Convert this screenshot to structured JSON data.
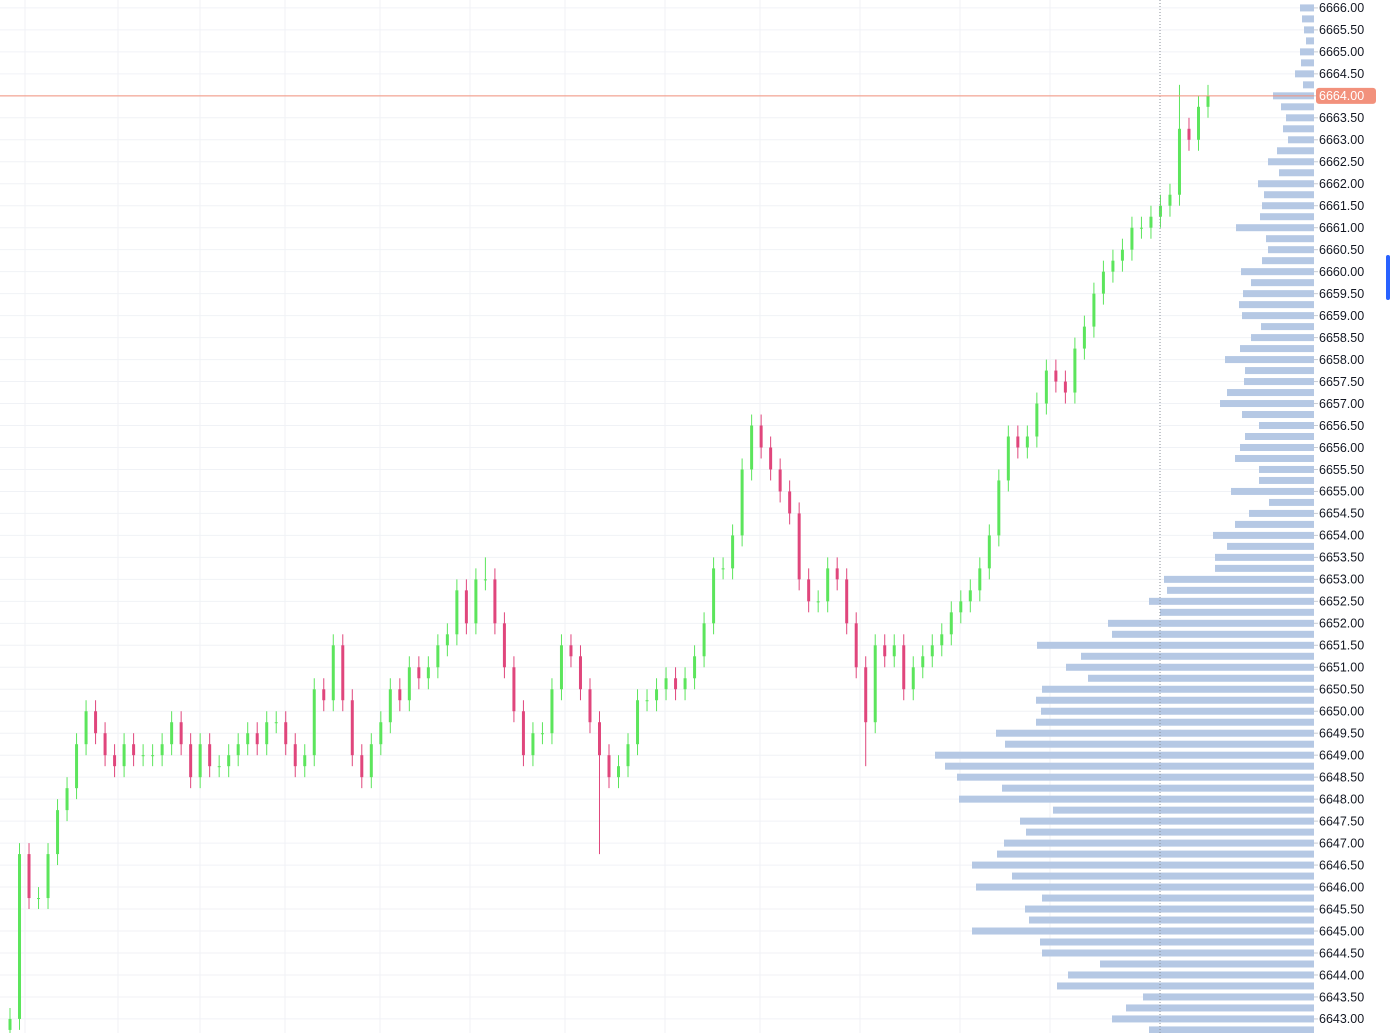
{
  "chart_data": {
    "type": "candlestick",
    "up_color": "#5ce55c",
    "down_color": "#e0467c",
    "grid": true,
    "ylim": [
      6642.68,
      6666.18
    ],
    "yticks": [
      {
        "value": 6666,
        "label": "6666.00"
      },
      {
        "value": 6665.5,
        "label": "6665.50"
      },
      {
        "value": 6665,
        "label": "6665.00"
      },
      {
        "value": 6664.5,
        "label": "6664.50"
      },
      {
        "value": 6664,
        "label": "6664.00"
      },
      {
        "value": 6663.5,
        "label": "6663.50"
      },
      {
        "value": 6663,
        "label": "6663.00"
      },
      {
        "value": 6662.5,
        "label": "6662.50"
      },
      {
        "value": 6662,
        "label": "6662.00"
      },
      {
        "value": 6661.5,
        "label": "6661.50"
      },
      {
        "value": 6661,
        "label": "6661.00"
      },
      {
        "value": 6660.5,
        "label": "6660.50"
      },
      {
        "value": 6660,
        "label": "6660.00"
      },
      {
        "value": 6659.5,
        "label": "6659.50"
      },
      {
        "value": 6659,
        "label": "6659.00"
      },
      {
        "value": 6658.5,
        "label": "6658.50"
      },
      {
        "value": 6658,
        "label": "6658.00"
      },
      {
        "value": 6657.5,
        "label": "6657.50"
      },
      {
        "value": 6657,
        "label": "6657.00"
      },
      {
        "value": 6656.5,
        "label": "6656.50"
      },
      {
        "value": 6656,
        "label": "6656.00"
      },
      {
        "value": 6655.5,
        "label": "6655.50"
      },
      {
        "value": 6655,
        "label": "6655.00"
      },
      {
        "value": 6654.5,
        "label": "6654.50"
      },
      {
        "value": 6654,
        "label": "6654.00"
      },
      {
        "value": 6653.5,
        "label": "6653.50"
      },
      {
        "value": 6653,
        "label": "6653.00"
      },
      {
        "value": 6652.5,
        "label": "6652.50"
      },
      {
        "value": 6652,
        "label": "6652.00"
      },
      {
        "value": 6651.5,
        "label": "6651.50"
      },
      {
        "value": 6651,
        "label": "6651.00"
      },
      {
        "value": 6650.5,
        "label": "6650.50"
      },
      {
        "value": 6650,
        "label": "6650.00"
      },
      {
        "value": 6649.5,
        "label": "6649.50"
      },
      {
        "value": 6649,
        "label": "6649.00"
      },
      {
        "value": 6648.5,
        "label": "6648.50"
      },
      {
        "value": 6648,
        "label": "6648.00"
      },
      {
        "value": 6647.5,
        "label": "6647.50"
      },
      {
        "value": 6647,
        "label": "6647.00"
      },
      {
        "value": 6646.5,
        "label": "6646.50"
      },
      {
        "value": 6646,
        "label": "6646.00"
      },
      {
        "value": 6645.5,
        "label": "6645.50"
      },
      {
        "value": 6645,
        "label": "6645.00"
      },
      {
        "value": 6644.5,
        "label": "6644.50"
      },
      {
        "value": 6644,
        "label": "6644.00"
      },
      {
        "value": 6643.5,
        "label": "6643.50"
      },
      {
        "value": 6643,
        "label": "6643.00"
      }
    ],
    "current_price": {
      "value": 6664,
      "label": "6664.00",
      "color": "#f2917c"
    },
    "open": [
      6642.75,
      6643.0,
      6646.75,
      6645.75,
      6645.75,
      6646.75,
      6647.75,
      6648.25,
      6649.25,
      6650.0,
      6649.5,
      6649.0,
      6648.75,
      6649.25,
      6649.0,
      6649.0,
      6649.0,
      6649.25,
      6649.75,
      6649.25,
      6648.5,
      6649.25,
      6648.75,
      6648.75,
      6649.0,
      6649.25,
      6649.5,
      6649.25,
      6649.75,
      6649.75,
      6649.25,
      6648.75,
      6649.0,
      6650.5,
      6650.25,
      6651.5,
      6650.25,
      6649.0,
      6648.5,
      6649.25,
      6649.75,
      6650.5,
      6650.25,
      6651.0,
      6650.75,
      6651.0,
      6651.5,
      6651.75,
      6652.75,
      6652.0,
      6653.0,
      6653.0,
      6652.0,
      6651.0,
      6650.0,
      6649.0,
      6649.5,
      6649.5,
      6650.5,
      6651.5,
      6651.25,
      6650.5,
      6649.75,
      6649.0,
      6648.5,
      6648.75,
      6649.25,
      6650.25,
      6650.25,
      6650.5,
      6650.75,
      6650.5,
      6650.75,
      6651.25,
      6652.0,
      6653.25,
      6653.25,
      6654.0,
      6655.5,
      6656.5,
      6656.0,
      6655.5,
      6655.0,
      6654.5,
      6653.0,
      6652.5,
      6652.5,
      6653.25,
      6653.0,
      6652.0,
      6651.0,
      6649.75,
      6651.5,
      6651.25,
      6651.5,
      6650.5,
      6651.0,
      6651.25,
      6651.5,
      6651.75,
      6652.25,
      6652.5,
      6652.75,
      6653.25,
      6654.0,
      6655.25,
      6656.25,
      6656.0,
      6656.25,
      6657.0,
      6657.75,
      6657.5,
      6657.25,
      6658.25,
      6658.75,
      6659.5,
      6660.0,
      6660.25,
      6660.5,
      6661.0,
      6661.0,
      6661.25,
      6661.5,
      6661.75,
      6663.25,
      6663.0,
      6663.75
    ],
    "high": [
      6643.25,
      6647.0,
      6647.0,
      6646.0,
      6647.0,
      6648.0,
      6648.5,
      6649.5,
      6650.25,
      6650.25,
      6649.75,
      6649.25,
      6649.5,
      6649.5,
      6649.25,
      6649.25,
      6649.5,
      6650.0,
      6650.0,
      6649.5,
      6649.5,
      6649.5,
      6649.0,
      6649.25,
      6649.5,
      6649.75,
      6649.75,
      6650.0,
      6650.0,
      6650.0,
      6649.5,
      6649.25,
      6650.75,
      6650.75,
      6651.75,
      6651.75,
      6650.5,
      6649.25,
      6649.5,
      6650.0,
      6650.75,
      6650.75,
      6651.25,
      6651.25,
      6651.25,
      6651.75,
      6652.0,
      6653.0,
      6653.0,
      6653.25,
      6653.5,
      6653.25,
      6652.25,
      6651.25,
      6650.25,
      6649.75,
      6649.75,
      6650.75,
      6651.75,
      6651.75,
      6651.5,
      6650.75,
      6650.0,
      6649.25,
      6649.0,
      6649.5,
      6650.5,
      6650.5,
      6650.75,
      6651.0,
      6651.0,
      6651.0,
      6651.5,
      6652.25,
      6653.5,
      6653.5,
      6654.25,
      6655.75,
      6656.75,
      6656.75,
      6656.25,
      6655.75,
      6655.25,
      6654.75,
      6653.25,
      6652.75,
      6653.5,
      6653.5,
      6653.25,
      6652.25,
      6651.25,
      6651.75,
      6651.75,
      6651.75,
      6651.75,
      6651.25,
      6651.5,
      6651.75,
      6652.0,
      6652.5,
      6652.75,
      6653.0,
      6653.5,
      6654.25,
      6655.5,
      6656.5,
      6656.5,
      6656.5,
      6657.25,
      6658.0,
      6658.0,
      6657.75,
      6658.5,
      6659.0,
      6659.75,
      6660.25,
      6660.5,
      6660.75,
      6661.25,
      6661.25,
      6661.5,
      6661.75,
      6662.0,
      6664.25,
      6663.5,
      6664.0,
      6664.25
    ],
    "low": [
      6642.5,
      6642.75,
      6645.5,
      6645.5,
      6645.5,
      6646.5,
      6647.5,
      6648.0,
      6649.0,
      6649.25,
      6648.75,
      6648.5,
      6648.5,
      6648.75,
      6648.75,
      6648.75,
      6648.75,
      6649.0,
      6649.0,
      6648.25,
      6648.25,
      6648.5,
      6648.5,
      6648.5,
      6648.75,
      6649.0,
      6649.0,
      6649.0,
      6649.5,
      6649.0,
      6648.5,
      6648.5,
      6648.75,
      6650.0,
      6650.0,
      6650.0,
      6648.75,
      6648.25,
      6648.25,
      6649.0,
      6649.5,
      6650.0,
      6650.0,
      6650.5,
      6650.5,
      6650.75,
      6651.25,
      6651.5,
      6651.75,
      6651.75,
      6652.75,
      6651.75,
      6650.75,
      6649.75,
      6648.75,
      6648.75,
      6649.25,
      6649.25,
      6650.25,
      6651.0,
      6650.25,
      6649.5,
      6646.75,
      6648.25,
      6648.25,
      6648.5,
      6649.0,
      6650.0,
      6650.0,
      6650.25,
      6650.25,
      6650.25,
      6650.5,
      6651.0,
      6651.75,
      6653.0,
      6653.0,
      6653.75,
      6655.25,
      6655.75,
      6655.25,
      6654.75,
      6654.25,
      6652.75,
      6652.25,
      6652.25,
      6652.25,
      6652.75,
      6651.75,
      6650.75,
      6648.75,
      6649.5,
      6651.0,
      6651.0,
      6650.25,
      6650.25,
      6650.75,
      6651.0,
      6651.25,
      6651.5,
      6652.0,
      6652.25,
      6652.5,
      6653.0,
      6653.75,
      6655.0,
      6655.75,
      6655.75,
      6656.0,
      6656.75,
      6657.25,
      6657.0,
      6657.0,
      6658.0,
      6658.5,
      6659.25,
      6659.75,
      6660.0,
      6660.25,
      6660.75,
      6660.75,
      6661.0,
      6661.25,
      6661.5,
      6662.75,
      6662.75,
      6663.5
    ],
    "close": [
      6643.0,
      6646.75,
      6645.75,
      6645.75,
      6646.75,
      6647.75,
      6648.25,
      6649.25,
      6650.0,
      6649.5,
      6649.0,
      6648.75,
      6649.25,
      6649.0,
      6649.0,
      6649.0,
      6649.25,
      6649.75,
      6649.25,
      6648.5,
      6649.25,
      6648.75,
      6648.75,
      6649.0,
      6649.25,
      6649.5,
      6649.25,
      6649.75,
      6649.75,
      6649.25,
      6648.75,
      6649.0,
      6650.5,
      6650.25,
      6651.5,
      6650.25,
      6649.0,
      6648.5,
      6649.25,
      6649.75,
      6650.5,
      6650.25,
      6651.0,
      6650.75,
      6651.0,
      6651.5,
      6651.75,
      6652.75,
      6652.0,
      6653.0,
      6653.0,
      6652.0,
      6651.0,
      6650.0,
      6649.0,
      6649.5,
      6649.5,
      6650.5,
      6651.5,
      6651.25,
      6650.5,
      6649.75,
      6649.0,
      6648.5,
      6648.75,
      6649.25,
      6650.25,
      6650.25,
      6650.5,
      6650.75,
      6650.5,
      6650.75,
      6651.25,
      6652.0,
      6653.25,
      6653.25,
      6654.0,
      6655.5,
      6656.5,
      6656.0,
      6655.5,
      6655.0,
      6654.5,
      6653.0,
      6652.5,
      6652.5,
      6653.25,
      6653.0,
      6652.0,
      6651.0,
      6649.75,
      6651.5,
      6651.25,
      6651.5,
      6650.5,
      6651.0,
      6651.25,
      6651.5,
      6651.75,
      6652.25,
      6652.5,
      6652.75,
      6653.25,
      6654.0,
      6655.25,
      6656.25,
      6656.0,
      6656.25,
      6657.0,
      6657.75,
      6657.5,
      6657.25,
      6658.25,
      6658.75,
      6659.5,
      6660.0,
      6660.25,
      6660.5,
      6661.0,
      6661.0,
      6661.25,
      6661.5,
      6661.75,
      6663.25,
      6663.0,
      6663.75,
      6664.0
    ],
    "volume_profile": {
      "color": "#b5c8e4",
      "prices": [
        6666.0,
        6665.75,
        6665.5,
        6665.25,
        6665.0,
        6664.75,
        6664.5,
        6664.25,
        6664.0,
        6663.75,
        6663.5,
        6663.25,
        6663.0,
        6662.75,
        6662.5,
        6662.25,
        6662.0,
        6661.75,
        6661.5,
        6661.25,
        6661.0,
        6660.75,
        6660.5,
        6660.25,
        6660.0,
        6659.75,
        6659.5,
        6659.25,
        6659.0,
        6658.75,
        6658.5,
        6658.25,
        6658.0,
        6657.75,
        6657.5,
        6657.25,
        6657.0,
        6656.75,
        6656.5,
        6656.25,
        6656.0,
        6655.75,
        6655.5,
        6655.25,
        6655.0,
        6654.75,
        6654.5,
        6654.25,
        6654.0,
        6653.75,
        6653.5,
        6653.25,
        6653.0,
        6652.75,
        6652.5,
        6652.25,
        6652.0,
        6651.75,
        6651.5,
        6651.25,
        6651.0,
        6650.75,
        6650.5,
        6650.25,
        6650.0,
        6649.75,
        6649.5,
        6649.25,
        6649.0,
        6648.75,
        6648.5,
        6648.25,
        6648.0,
        6647.75,
        6647.5,
        6647.25,
        6647.0,
        6646.75,
        6646.5,
        6646.25,
        6646.0,
        6645.75,
        6645.5,
        6645.25,
        6645.0,
        6644.75,
        6644.5,
        6644.25,
        6644.0,
        6643.75,
        6643.5,
        6643.25,
        6643.0,
        6642.75
      ],
      "volumes": [
        14,
        12,
        10,
        8,
        14,
        13,
        19,
        11,
        41,
        33,
        28,
        31,
        26,
        37,
        46,
        35,
        56,
        50,
        52,
        54,
        78,
        48,
        46,
        52,
        73,
        63,
        71,
        75,
        72,
        53,
        63,
        74,
        89,
        69,
        70,
        87,
        94,
        72,
        55,
        69,
        74,
        79,
        55,
        55,
        83,
        45,
        65,
        79,
        101,
        87,
        99,
        99,
        150,
        147,
        165,
        154,
        206,
        202,
        277,
        233,
        248,
        226,
        272,
        278,
        273,
        278,
        318,
        309,
        379,
        369,
        357,
        312,
        355,
        261,
        294,
        288,
        310,
        317,
        342,
        302,
        338,
        272,
        289,
        285,
        342,
        274,
        272,
        214,
        246,
        257,
        171,
        188,
        202,
        165
      ]
    }
  }
}
